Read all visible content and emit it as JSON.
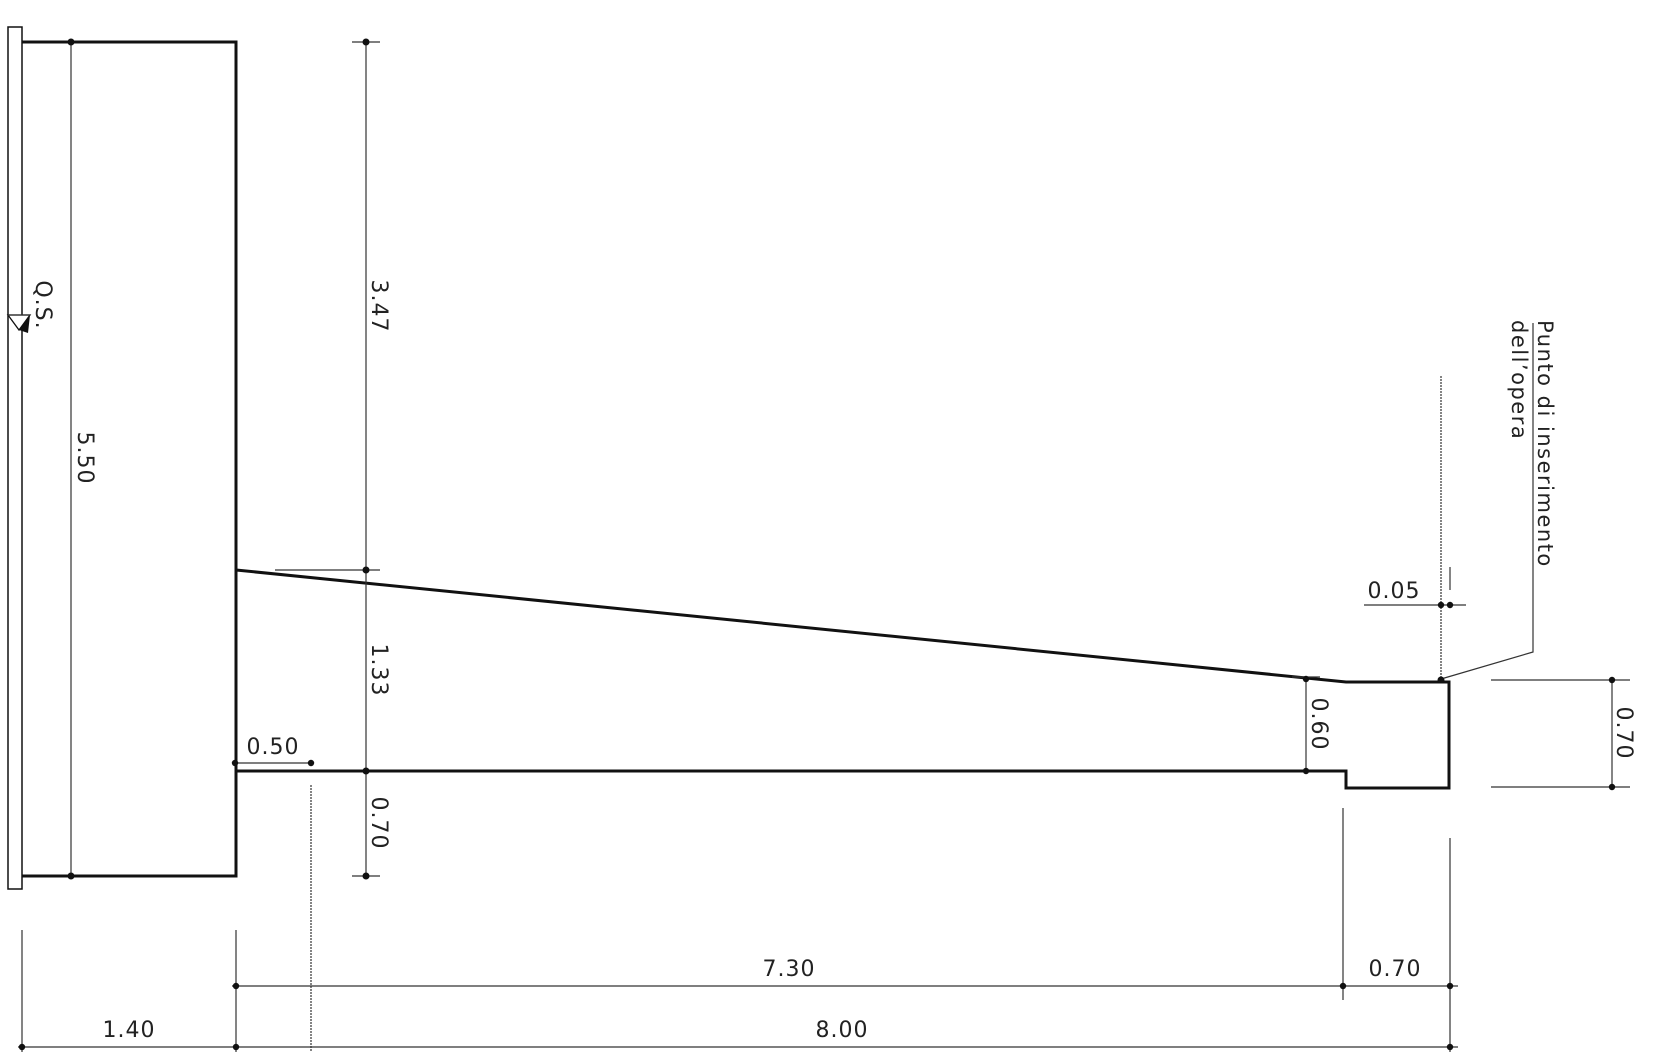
{
  "drawing": {
    "dimensions": {
      "wall_height": "5.50",
      "upper_wall": "3.47",
      "slab_mid": "1.33",
      "slab_base": "0.70",
      "toe_step": "0.50",
      "end_depth": "0.60",
      "end_offset": "0.05",
      "tip_height": "0.70",
      "span_main": "7.30",
      "span_tip": "0.70",
      "span_left": "1.40",
      "span_total": "8.00"
    },
    "water_level_label": "Q.S.",
    "insertion_note_line1": "Punto di inserimento",
    "insertion_note_line2": "dell’opera"
  }
}
